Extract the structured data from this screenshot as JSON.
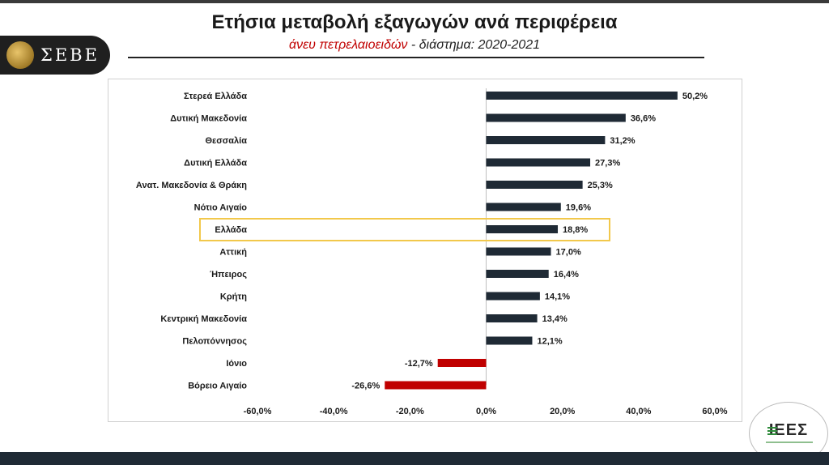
{
  "header": {
    "title": "Ετήσια μεταβολή εξαγωγών ανά περιφέρεια",
    "subtitle_highlight": "άνευ πετρελαιοειδών",
    "subtitle_rest": " - διάστημα: 2020-2021"
  },
  "logo_left": {
    "text": "ΣΕΒΕ",
    "icon": "seve-emblem-icon"
  },
  "logo_right": {
    "text": "ΙΕΕΣ",
    "icon": "iees-logo-icon"
  },
  "chart_data": {
    "type": "bar",
    "orientation": "horizontal",
    "categories": [
      "Στερεά Ελλάδα",
      "Δυτική Μακεδονία",
      "Θεσσαλία",
      "Δυτική Ελλάδα",
      "Ανατ. Μακεδονία & Θράκη",
      "Νότιο Αιγαίο",
      "Ελλάδα",
      "Αττική",
      "Ήπειρος",
      "Κρήτη",
      "Κεντρική Μακεδονία",
      "Πελοπόννησος",
      "Ιόνιο",
      "Βόρειο Αιγαίο"
    ],
    "values": [
      50.2,
      36.6,
      31.2,
      27.3,
      25.3,
      19.6,
      18.8,
      17.0,
      16.4,
      14.1,
      13.4,
      12.1,
      -12.7,
      -26.6
    ],
    "value_labels": [
      "50,2%",
      "36,6%",
      "31,2%",
      "27,3%",
      "25,3%",
      "19,6%",
      "18,8%",
      "17,0%",
      "16,4%",
      "14,1%",
      "13,4%",
      "12,1%",
      "-12,7%",
      "-26,6%"
    ],
    "highlight_category": "Ελλάδα",
    "xlim": [
      -60,
      60
    ],
    "xticks": [
      -60,
      -40,
      -20,
      0,
      20,
      40,
      60
    ],
    "xtick_labels": [
      "-60,0%",
      "-40,0%",
      "-20,0%",
      "0,0%",
      "20,0%",
      "40,0%",
      "60,0%"
    ],
    "grid": false,
    "colors": {
      "positive": "#1f2a35",
      "negative": "#c00000",
      "highlight_frame": "#f2c84b",
      "axis": "#bfbfbf"
    }
  }
}
